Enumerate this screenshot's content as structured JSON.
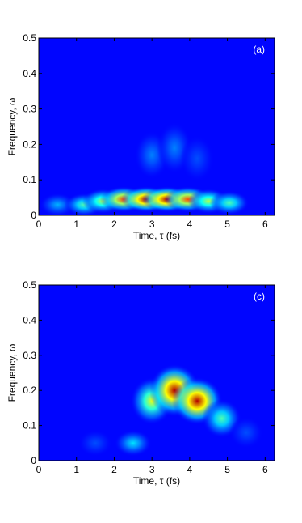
{
  "chart_data": [
    {
      "type": "heatmap",
      "panel_label": "(a)",
      "x_label": "Time, τ (fs)",
      "y_label": "Frequency, ω",
      "xlim": [
        0,
        6.25
      ],
      "ylim": [
        0,
        0.5
      ],
      "xticks": [
        0,
        1,
        2,
        3,
        4,
        5,
        6
      ],
      "yticks": [
        0,
        0.1,
        0.2,
        0.3,
        0.4,
        0.5
      ],
      "x": [
        0.5,
        1.2,
        1.7,
        2.25,
        2.85,
        3.4,
        3.95,
        4.5,
        5.05,
        3.0,
        3.6,
        4.2
      ],
      "y": [
        0.03,
        0.03,
        0.04,
        0.045,
        0.045,
        0.045,
        0.045,
        0.04,
        0.035,
        0.17,
        0.19,
        0.16
      ],
      "values": [
        0.3,
        0.45,
        0.55,
        0.8,
        0.95,
        0.95,
        0.8,
        0.55,
        0.45,
        0.25,
        0.25,
        0.2
      ]
    },
    {
      "type": "heatmap",
      "panel_label": "(c)",
      "x_label": "Time, τ (fs)",
      "y_label": "Frequency, ω",
      "xlim": [
        0,
        6.25
      ],
      "ylim": [
        0,
        0.5
      ],
      "xticks": [
        0,
        1,
        2,
        3,
        4,
        5,
        6
      ],
      "yticks": [
        0,
        0.1,
        0.2,
        0.3,
        0.4,
        0.5
      ],
      "x": [
        1.5,
        2.5,
        3.0,
        3.6,
        4.2,
        4.85,
        5.5
      ],
      "y": [
        0.05,
        0.05,
        0.17,
        0.2,
        0.17,
        0.12,
        0.08
      ],
      "values": [
        0.2,
        0.35,
        0.6,
        0.95,
        0.95,
        0.45,
        0.2
      ]
    }
  ]
}
